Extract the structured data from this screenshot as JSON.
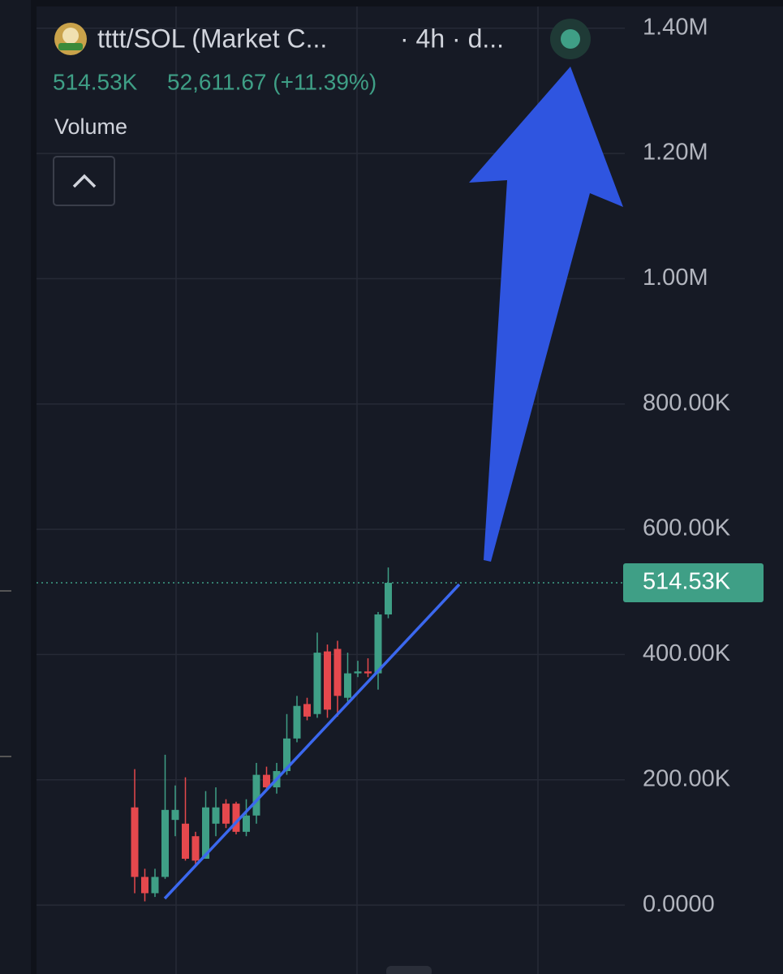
{
  "chart_data": {
    "type": "candlestick",
    "title": "tttt/SOL (Market C...",
    "interval": "· 4h · d...",
    "header_price": "514.53K",
    "header_change": "52,611.67 (+11.39%)",
    "indicator": "Volume",
    "open": [
      156000,
      45000,
      19000,
      45000,
      136000,
      130000,
      110000,
      74000,
      130000,
      162000,
      162000,
      117000,
      143000,
      208000,
      188000,
      214000,
      266000,
      321000,
      305000,
      405000,
      409000,
      331000,
      370000,
      373000,
      370000,
      464000
    ],
    "close": [
      45000,
      19000,
      45000,
      152000,
      152000,
      74000,
      71000,
      156000,
      156000,
      130000,
      117000,
      143000,
      208000,
      188000,
      214000,
      266000,
      318000,
      301000,
      403000,
      312000,
      334000,
      370000,
      373000,
      370000,
      464000,
      514530
    ],
    "high": [
      217000,
      58000,
      58000,
      240000,
      191000,
      204000,
      117000,
      182000,
      188000,
      169000,
      165000,
      169000,
      227000,
      221000,
      227000,
      305000,
      334000,
      331000,
      435000,
      416000,
      422000,
      403000,
      390000,
      394000,
      468000,
      539000
    ],
    "low": [
      19000,
      6000,
      13000,
      42000,
      110000,
      71000,
      65000,
      74000,
      110000,
      123000,
      113000,
      110000,
      130000,
      182000,
      178000,
      208000,
      260000,
      295000,
      299000,
      299000,
      301000,
      325000,
      364000,
      364000,
      344000,
      458000
    ],
    "up_color": "#3f9f86",
    "down_color": "#e5484d",
    "ylim": [
      -110000,
      1445000
    ],
    "yticks": [
      {
        "value": 0,
        "label": "0.0000"
      },
      {
        "value": 200000,
        "label": "200.00K"
      },
      {
        "value": 400000,
        "label": "400.00K"
      },
      {
        "value": 600000,
        "label": "600.00K"
      },
      {
        "value": 800000,
        "label": "800.00K"
      },
      {
        "value": 1000000,
        "label": "1.00M"
      },
      {
        "value": 1200000,
        "label": "1.20M"
      },
      {
        "value": 1400000,
        "label": "1.40M"
      }
    ],
    "last_price": {
      "value": 514530,
      "label": "514.53K"
    },
    "grid": true
  }
}
